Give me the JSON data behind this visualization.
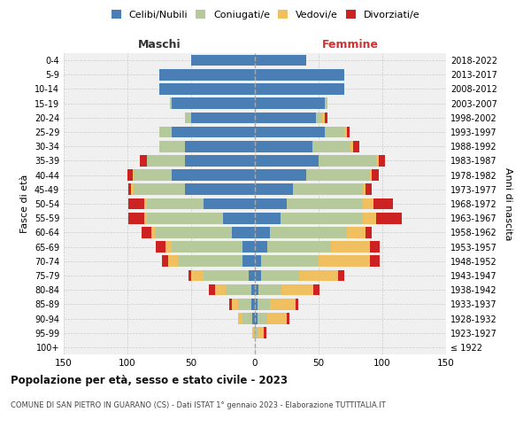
{
  "age_groups": [
    "100+",
    "95-99",
    "90-94",
    "85-89",
    "80-84",
    "75-79",
    "70-74",
    "65-69",
    "60-64",
    "55-59",
    "50-54",
    "45-49",
    "40-44",
    "35-39",
    "30-34",
    "25-29",
    "20-24",
    "15-19",
    "10-14",
    "5-9",
    "0-4"
  ],
  "birth_years": [
    "≤ 1922",
    "1923-1927",
    "1928-1932",
    "1933-1937",
    "1938-1942",
    "1943-1947",
    "1948-1952",
    "1953-1957",
    "1958-1962",
    "1963-1967",
    "1968-1972",
    "1973-1977",
    "1978-1982",
    "1983-1987",
    "1988-1992",
    "1993-1997",
    "1998-2002",
    "2003-2007",
    "2008-2012",
    "2013-2017",
    "2018-2022"
  ],
  "maschi": {
    "celibe": [
      0,
      0,
      2,
      3,
      3,
      5,
      10,
      10,
      18,
      25,
      40,
      55,
      65,
      55,
      55,
      65,
      50,
      65,
      75,
      75,
      50
    ],
    "coniugato": [
      0,
      1,
      8,
      10,
      20,
      35,
      50,
      55,
      60,
      60,
      45,
      40,
      30,
      30,
      20,
      10,
      5,
      2,
      0,
      0,
      0
    ],
    "vedovo": [
      0,
      1,
      3,
      5,
      8,
      10,
      8,
      5,
      3,
      2,
      2,
      2,
      1,
      0,
      0,
      0,
      0,
      0,
      0,
      0,
      0
    ],
    "divorziato": [
      0,
      0,
      0,
      2,
      5,
      2,
      5,
      8,
      8,
      12,
      12,
      2,
      4,
      5,
      0,
      0,
      0,
      0,
      0,
      0,
      0
    ]
  },
  "femmine": {
    "nubile": [
      0,
      0,
      2,
      2,
      3,
      5,
      5,
      10,
      12,
      20,
      25,
      30,
      40,
      50,
      45,
      55,
      48,
      55,
      70,
      70,
      40
    ],
    "coniugata": [
      0,
      2,
      8,
      10,
      18,
      30,
      45,
      50,
      60,
      65,
      60,
      55,
      50,
      45,
      30,
      15,
      5,
      2,
      0,
      0,
      0
    ],
    "vedova": [
      0,
      5,
      15,
      20,
      25,
      30,
      40,
      30,
      15,
      10,
      8,
      2,
      2,
      2,
      2,
      2,
      2,
      0,
      0,
      0,
      0
    ],
    "divorziata": [
      0,
      2,
      2,
      2,
      5,
      5,
      8,
      8,
      5,
      20,
      15,
      5,
      5,
      5,
      5,
      2,
      2,
      0,
      0,
      0,
      0
    ]
  },
  "colors": {
    "celibe": "#4a7fb5",
    "coniugato": "#b5c99a",
    "vedovo": "#f0c060",
    "divorziato": "#cc2222"
  },
  "legend_labels": [
    "Celibi/Nubili",
    "Coniugati/e",
    "Vedovi/e",
    "Divorziati/e"
  ],
  "title": "Popolazione per età, sesso e stato civile - 2023",
  "subtitle": "COMUNE DI SAN PIETRO IN GUARANO (CS) - Dati ISTAT 1° gennaio 2023 - Elaborazione TUTTITALIA.IT",
  "ylabel_left": "Fasce di età",
  "ylabel_right": "Anni di nascita",
  "xlabel_left": "Maschi",
  "xlabel_right": "Femmine",
  "xlim": 150,
  "bg_color": "#f0f0f0",
  "grid_color": "#cccccc"
}
